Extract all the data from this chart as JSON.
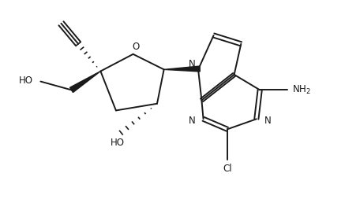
{
  "bg_color": "#ffffff",
  "line_color": "#1a1a1a",
  "line_width": 1.4,
  "figsize": [
    4.37,
    2.67
  ],
  "dpi": 100,
  "xlim": [
    0,
    10
  ],
  "ylim": [
    0,
    6.12
  ]
}
